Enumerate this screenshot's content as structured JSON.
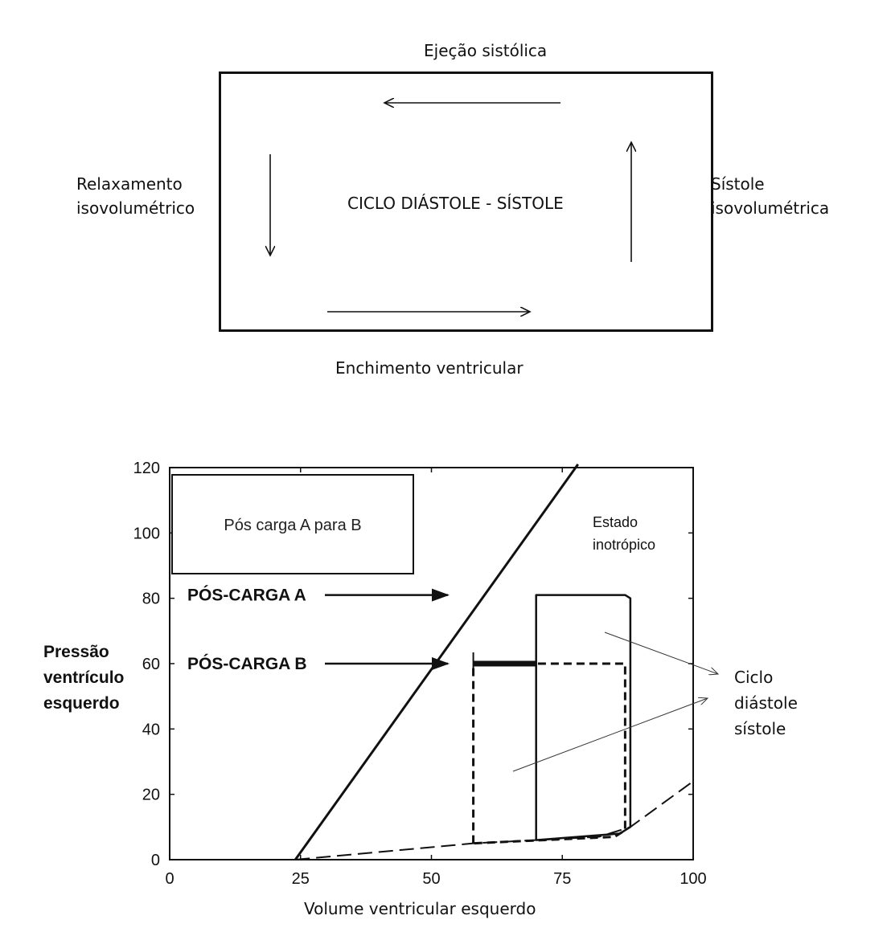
{
  "top_diagram": {
    "top_label": "Ejeção sistólica",
    "bottom_label": "Enchimento ventricular",
    "left_label_line1": "Relaxamento",
    "left_label_line2": "isovolumétrico",
    "right_label_line1": "Sístole",
    "right_label_line2": "isovolumétrica",
    "center_label": "CICLO DIÁSTOLE - SÍSTOLE"
  },
  "chart_data": {
    "type": "line",
    "xlim": [
      0,
      100
    ],
    "ylim": [
      0,
      120
    ],
    "x_ticks": [
      0,
      25,
      50,
      75,
      100
    ],
    "y_ticks": [
      0,
      20,
      40,
      60,
      80,
      100,
      120
    ],
    "xlabel": "Volume ventricular esquerdo",
    "ylabel_lines": [
      "Pressão",
      "ventrículo",
      "esquerdo"
    ],
    "inset_label": "Pós carga A para B",
    "afterload_a_label": "PÓS-CARGA  A",
    "afterload_b_label": "PÓS-CARGA  B",
    "inotropic_label_lines": [
      "Estado",
      "inotrópico"
    ],
    "cycle_label_lines": [
      "Ciclo",
      "diástole",
      "sístole"
    ],
    "inotropic_line": {
      "x": [
        24,
        78
      ],
      "y": [
        0,
        121
      ]
    },
    "afterload_a_level": 81,
    "afterload_b_level": 60,
    "diastolic_curve": {
      "x": [
        24,
        58,
        70,
        82,
        88,
        100
      ],
      "y": [
        0,
        5,
        6,
        7,
        10,
        24
      ]
    },
    "loop_afterload_a": {
      "x": [
        70,
        70,
        72,
        82,
        87,
        88,
        88,
        86,
        70
      ],
      "y": [
        6,
        81,
        81,
        81,
        81,
        80,
        10,
        8,
        6
      ]
    },
    "loop_afterload_b": {
      "x": [
        58,
        58,
        70,
        87,
        87,
        85,
        58
      ],
      "y": [
        5,
        60,
        60,
        60,
        9,
        7,
        5
      ]
    },
    "thick_segment": {
      "x": [
        58,
        70
      ],
      "y": [
        60,
        60
      ]
    }
  }
}
